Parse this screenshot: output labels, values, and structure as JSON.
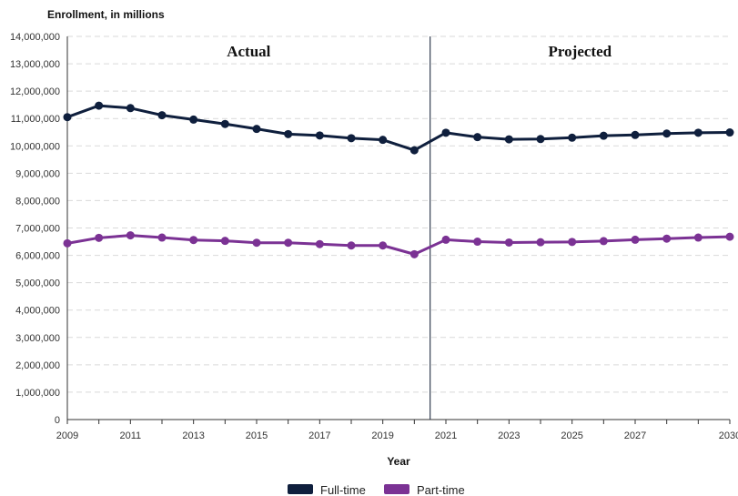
{
  "chart_data": {
    "type": "line",
    "ylabel": "Enrollment, in millions",
    "xlabel": "Year",
    "x": [
      2009,
      2010,
      2011,
      2012,
      2013,
      2014,
      2015,
      2016,
      2017,
      2018,
      2019,
      2020,
      2021,
      2022,
      2023,
      2024,
      2025,
      2026,
      2027,
      2028,
      2029,
      2030
    ],
    "x_tick_labels": [
      "2009",
      "2011",
      "2013",
      "2015",
      "2017",
      "2019",
      "2021",
      "2023",
      "2025",
      "2027",
      "2030"
    ],
    "y_tick_labels": [
      "0",
      "1,000,000",
      "2,000,000",
      "3,000,000",
      "4,000,000",
      "5,000,000",
      "6,000,000",
      "7,000,000",
      "8,000,000",
      "9,000,000",
      "10,000,000",
      "11,000,000",
      "12,000,000",
      "13,000,000",
      "14,000,000"
    ],
    "ylim": [
      0,
      14000000
    ],
    "grid": "horizontal dashed",
    "legend_position": "bottom",
    "divider_after_year": 2020,
    "sections": [
      "Actual",
      "Projected"
    ],
    "series": [
      {
        "name": "Full-time",
        "color": "#0f1f3d",
        "values": [
          11050000,
          11470000,
          11380000,
          11120000,
          10960000,
          10800000,
          10620000,
          10430000,
          10380000,
          10280000,
          10220000,
          9840000,
          10480000,
          10320000,
          10240000,
          10250000,
          10300000,
          10370000,
          10400000,
          10450000,
          10480000,
          10490000
        ]
      },
      {
        "name": "Part-time",
        "color": "#7b3294",
        "values": [
          6440000,
          6640000,
          6730000,
          6650000,
          6560000,
          6530000,
          6460000,
          6460000,
          6410000,
          6360000,
          6360000,
          6040000,
          6570000,
          6500000,
          6470000,
          6480000,
          6490000,
          6520000,
          6570000,
          6610000,
          6650000,
          6680000
        ]
      }
    ]
  }
}
